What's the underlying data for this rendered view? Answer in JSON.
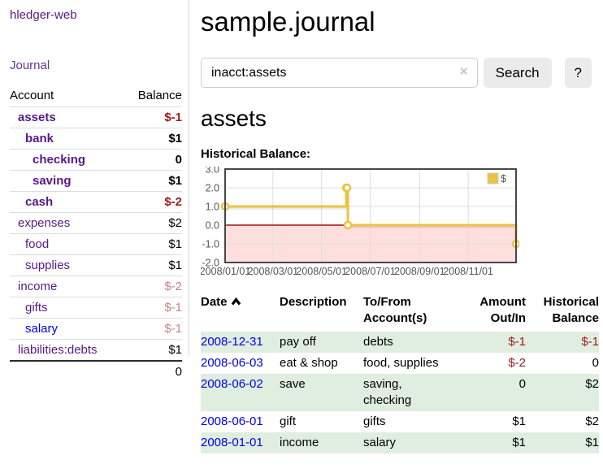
{
  "app": {
    "title": "hledger-web",
    "journal_link": "Journal"
  },
  "sidebar": {
    "header": {
      "account": "Account",
      "balance": "Balance"
    },
    "accounts": [
      {
        "label": "assets",
        "balance": "$-1",
        "level": 0,
        "bold": true,
        "balance_tone": "neg"
      },
      {
        "label": "bank",
        "balance": "$1",
        "level": 1,
        "bold": true,
        "balance_tone": "plain"
      },
      {
        "label": "checking",
        "balance": "0",
        "level": 2,
        "bold": true,
        "balance_tone": "plain"
      },
      {
        "label": "saving",
        "balance": "$1",
        "level": 2,
        "bold": true,
        "balance_tone": "plain"
      },
      {
        "label": "cash",
        "balance": "$-2",
        "level": 1,
        "bold": true,
        "balance_tone": "neg"
      },
      {
        "label": "expenses",
        "balance": "$2",
        "level": 0,
        "bold": false,
        "balance_tone": "plain"
      },
      {
        "label": "food",
        "balance": "$1",
        "level": 1,
        "bold": false,
        "balance_tone": "plain"
      },
      {
        "label": "supplies",
        "balance": "$1",
        "level": 1,
        "bold": false,
        "balance_tone": "plain"
      },
      {
        "label": "income",
        "balance": "$-2",
        "level": 0,
        "bold": false,
        "balance_tone": "negmuted"
      },
      {
        "label": "gifts",
        "balance": "$-1",
        "level": 1,
        "bold": false,
        "balance_tone": "negmuted"
      },
      {
        "label": "salary",
        "balance": "$-1",
        "level": 1,
        "bold": false,
        "balance_tone": "negmuted",
        "link_tone": "unvisited"
      },
      {
        "label": "liabilities:debts",
        "balance": "$1",
        "level": 0,
        "bold": false,
        "balance_tone": "plain"
      }
    ],
    "total": "0"
  },
  "main": {
    "title": "sample.journal",
    "search": {
      "value": "inacct:assets",
      "clear_icon": "×",
      "button_label": "Search",
      "help_label": "?"
    },
    "account_heading": "assets"
  },
  "chart_data": {
    "type": "line",
    "title": "Historical Balance:",
    "step": true,
    "x_range": [
      "2008-01-01",
      "2008-12-31"
    ],
    "y_range": [
      -2,
      3
    ],
    "y_ticks": [
      3,
      2,
      1,
      0,
      -1,
      -2
    ],
    "x_ticks": [
      "2008/01/01",
      "2008/03/01",
      "2008/05/01",
      "2008/07/01",
      "2008/09/01",
      "2008/11/01"
    ],
    "series": [
      {
        "name": "$",
        "color": "#edc240",
        "points": [
          {
            "date": "2008-01-01",
            "value": 1
          },
          {
            "date": "2008-06-01",
            "value": 2
          },
          {
            "date": "2008-06-02",
            "value": 2
          },
          {
            "date": "2008-06-03",
            "value": 0
          },
          {
            "date": "2008-12-31",
            "value": -1
          }
        ]
      }
    ],
    "negative_region_color": "#ffdede",
    "zero_line_color": "#aa1111",
    "grid_color": "#dddddd",
    "border_color": "#474747",
    "legend": {
      "label": "$",
      "position": "top-right"
    }
  },
  "register_table": {
    "headers": [
      {
        "label": "Date",
        "align": "left",
        "sorted": "asc"
      },
      {
        "label": "Description",
        "align": "left"
      },
      {
        "label": "To/From Account(s)",
        "align": "left"
      },
      {
        "label": "Amount Out/In",
        "align": "right"
      },
      {
        "label": "Historical Balance",
        "align": "right"
      }
    ],
    "rows": [
      {
        "date": "2008-12-31",
        "description": "pay off",
        "accounts": "debts",
        "amount": "$-1",
        "amount_tone": "neg",
        "balance": "$-1",
        "balance_tone": "neg"
      },
      {
        "date": "2008-06-03",
        "description": "eat & shop",
        "accounts": "food, supplies",
        "amount": "$-2",
        "amount_tone": "neg",
        "balance": "0",
        "balance_tone": "plain"
      },
      {
        "date": "2008-06-02",
        "description": "save",
        "accounts": "saving,\nchecking",
        "amount": "0",
        "amount_tone": "plain",
        "balance": "$2",
        "balance_tone": "plain"
      },
      {
        "date": "2008-06-01",
        "description": "gift",
        "accounts": "gifts",
        "amount": "$1",
        "amount_tone": "plain",
        "balance": "$2",
        "balance_tone": "plain"
      },
      {
        "date": "2008-01-01",
        "description": "income",
        "accounts": "salary",
        "amount": "$1",
        "amount_tone": "plain",
        "balance": "$1",
        "balance_tone": "plain"
      }
    ]
  },
  "colors": {
    "accent_purple": "#551a8b",
    "link_blue": "#0000ee",
    "negative_red": "#9a1b1b",
    "muted_negative_red": "#c88383",
    "row_stripe_green": "#dfeedf",
    "chart_gold": "#edc240",
    "chart_negative_region": "#ffdede",
    "chart_zero_line": "#aa1111"
  }
}
